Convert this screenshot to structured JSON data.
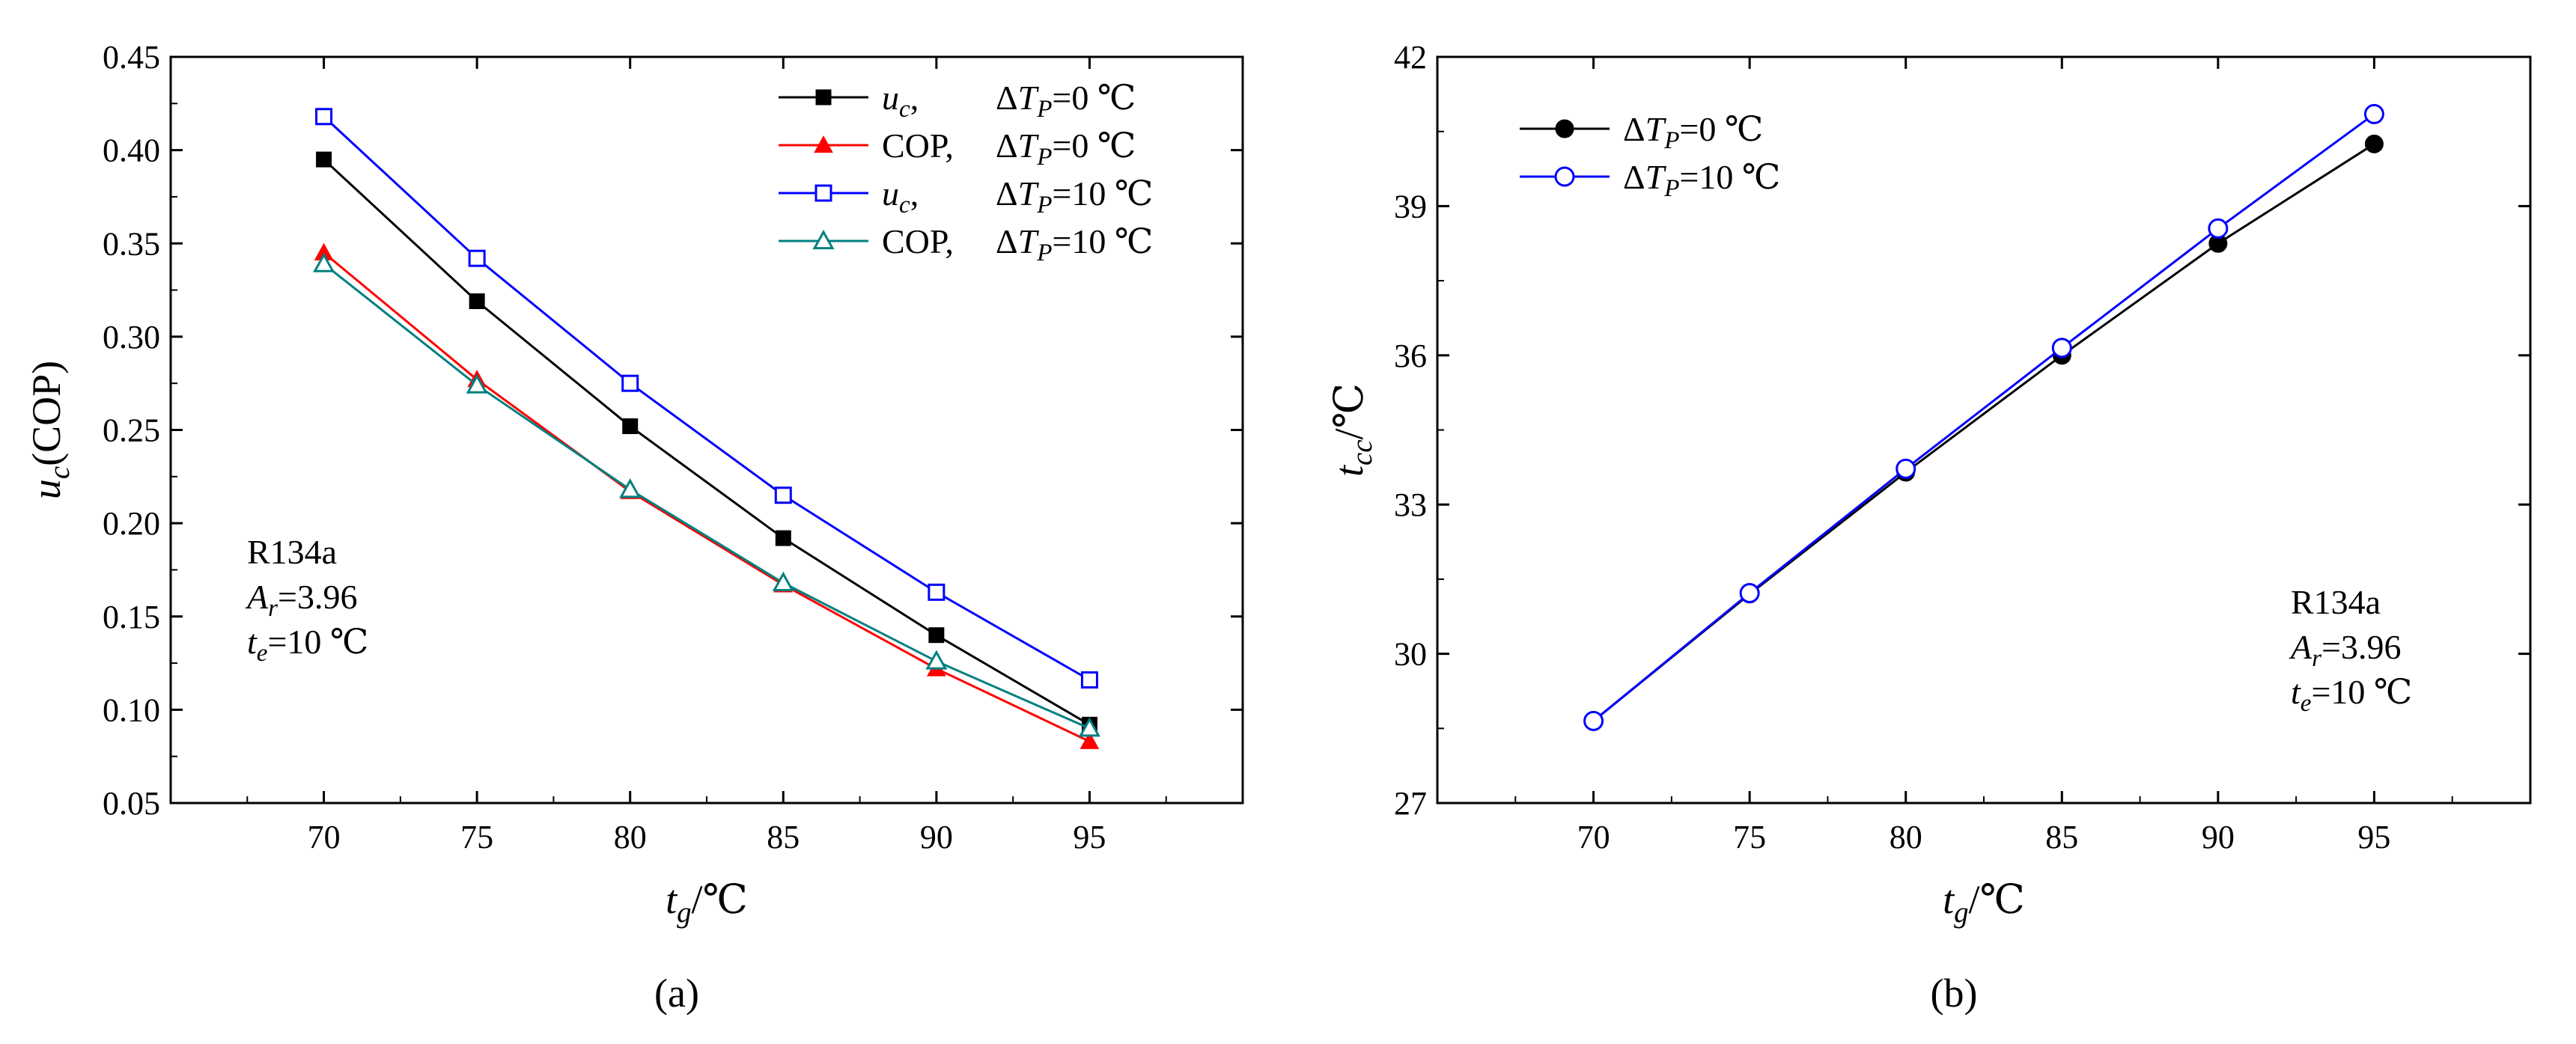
{
  "chart_data": [
    {
      "type": "line",
      "caption": "(a)",
      "x": [
        70,
        75,
        80,
        85,
        90,
        95
      ],
      "xlim": [
        65,
        100
      ],
      "ylim": [
        0.05,
        0.45
      ],
      "xticks": [
        "70",
        "75",
        "80",
        "85",
        "90",
        "95"
      ],
      "yticks": [
        "0.05",
        "0.10",
        "0.15",
        "0.20",
        "0.25",
        "0.30",
        "0.35",
        "0.40",
        "0.45"
      ],
      "xlabel": {
        "var": "t",
        "sub": "g",
        "unit": "/℃"
      },
      "ylabel": {
        "var": "u",
        "sub": "c",
        "rest": "(COP)"
      },
      "legend_position": "top-right",
      "series": [
        {
          "name_a": "u",
          "name_sub": "c",
          "name_b": ",",
          "cond": "0 ℃",
          "color": "#000000",
          "marker": "square-filled",
          "values": [
            0.395,
            0.319,
            0.252,
            0.192,
            0.14,
            0.092
          ]
        },
        {
          "name_a": "COP",
          "name_sub": "",
          "name_b": ",",
          "cond": "0 ℃",
          "color": "#ff0000",
          "marker": "triangle-filled",
          "values": [
            0.345,
            0.277,
            0.217,
            0.167,
            0.122,
            0.083
          ]
        },
        {
          "name_a": "u",
          "name_sub": "c",
          "name_b": ",",
          "cond": "10 ℃",
          "color": "#0000ff",
          "marker": "square-open",
          "values": [
            0.418,
            0.342,
            0.275,
            0.215,
            0.163,
            0.116
          ]
        },
        {
          "name_a": "COP",
          "name_sub": "",
          "name_b": ",",
          "cond": "10 ℃",
          "color": "#008080",
          "marker": "triangle-open",
          "values": [
            0.339,
            0.274,
            0.218,
            0.168,
            0.126,
            0.09
          ]
        }
      ],
      "annotation": {
        "line1": "R134a",
        "ar_var": "A",
        "ar_sub": "r",
        "ar_val": "=3.96",
        "te_var": "t",
        "te_sub": "e",
        "te_val": "=10 ℃"
      }
    },
    {
      "type": "line",
      "caption": "(b)",
      "x": [
        70,
        75,
        80,
        85,
        90,
        95
      ],
      "xlim": [
        65,
        100
      ],
      "ylim": [
        27,
        42
      ],
      "xticks": [
        "70",
        "75",
        "80",
        "85",
        "90",
        "95"
      ],
      "yticks": [
        "27",
        "30",
        "33",
        "36",
        "39",
        "42"
      ],
      "xlabel": {
        "var": "t",
        "sub": "g",
        "unit": "/℃"
      },
      "ylabel": {
        "var": "t",
        "sub": "cc",
        "rest": "/℃"
      },
      "legend_position": "top-left",
      "series": [
        {
          "cond": "0 ℃",
          "color": "#000000",
          "marker": "circle-filled",
          "values": [
            28.65,
            31.2,
            33.65,
            36.0,
            38.25,
            40.25
          ]
        },
        {
          "cond": "10 ℃",
          "color": "#0000ff",
          "marker": "circle-open",
          "values": [
            28.65,
            31.22,
            33.72,
            36.15,
            38.55,
            40.85
          ]
        }
      ],
      "annotation": {
        "line1": "R134a",
        "ar_var": "A",
        "ar_sub": "r",
        "ar_val": "=3.96",
        "te_var": "t",
        "te_sub": "e",
        "te_val": "=10 ℃"
      }
    }
  ]
}
